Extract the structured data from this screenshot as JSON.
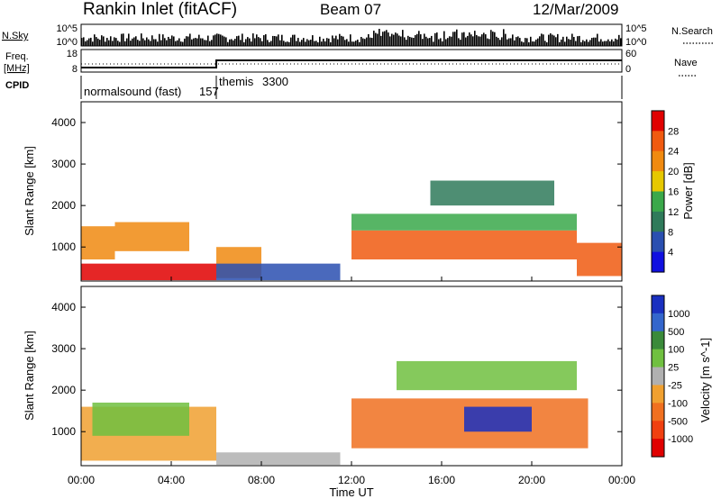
{
  "header": {
    "station": "Rankin Inlet (fitACF)",
    "beam": "Beam 07",
    "date": "12/Mar/2009"
  },
  "strips": {
    "nsky": {
      "label": "N.Sky",
      "ticks": [
        "10^5",
        "10^0"
      ]
    },
    "nsearch": {
      "label": "N.Search",
      "ticks": [
        "10^5",
        "10^0"
      ]
    },
    "freq": {
      "label_line1": "Freq.",
      "label_line2": "[MHz]",
      "ticks": [
        "18",
        "8"
      ]
    },
    "nave": {
      "label": "Nave",
      "ticks": [
        "60",
        "0"
      ]
    },
    "cpid": {
      "label": "CPID",
      "modes": [
        {
          "name": "normalsound (fast)",
          "id": "157",
          "start_hour": 0,
          "end_hour": 6
        },
        {
          "name": "themis",
          "id": "3300",
          "start_hour": 6,
          "end_hour": 24
        }
      ]
    }
  },
  "colors": {
    "power_scale": [
      "#1010e0",
      "#2a4fb0",
      "#2f7a5a",
      "#3aa84a",
      "#e6c800",
      "#f08a10",
      "#f05a10",
      "#e00000"
    ],
    "velocity_scale": [
      "#1a30c0",
      "#3366cc",
      "#3a8a3a",
      "#70c040",
      "#b0b0b0",
      "#f0a030",
      "#f07020",
      "#f04010",
      "#e00000"
    ]
  },
  "chart_data": [
    {
      "type": "heatmap",
      "title": "",
      "xlabel": "",
      "ylabel": "Slant Range [km]",
      "x_range_hours": [
        0,
        24
      ],
      "ylim": [
        180,
        4500
      ],
      "x_ticks": [
        "00:00",
        "04:00",
        "08:00",
        "12:00",
        "16:00",
        "20:00",
        "00:00"
      ],
      "y_ticks": [
        "1000",
        "2000",
        "3000",
        "4000"
      ],
      "colorbar": {
        "label": "Power [dB]",
        "ticks": [
          "28",
          "24",
          "20",
          "16",
          "12",
          "8",
          "4"
        ],
        "range": [
          0,
          30
        ]
      },
      "regions": [
        {
          "t0": 0.0,
          "t1": 6.0,
          "r0": 200,
          "r1": 600,
          "value": 28
        },
        {
          "t0": 0.0,
          "t1": 1.5,
          "r0": 700,
          "r1": 1500,
          "value": 22
        },
        {
          "t0": 1.5,
          "t1": 4.8,
          "r0": 900,
          "r1": 1600,
          "value": 20
        },
        {
          "t0": 6.0,
          "t1": 8.0,
          "r0": 250,
          "r1": 1000,
          "value": 20
        },
        {
          "t0": 6.0,
          "t1": 11.5,
          "r0": 200,
          "r1": 600,
          "value": 6
        },
        {
          "t0": 12.0,
          "t1": 22.0,
          "r0": 700,
          "r1": 1400,
          "value": 26
        },
        {
          "t0": 12.0,
          "t1": 22.0,
          "r0": 1400,
          "r1": 1800,
          "value": 12
        },
        {
          "t0": 15.5,
          "t1": 21.0,
          "r0": 2000,
          "r1": 2600,
          "value": 8
        },
        {
          "t0": 22.0,
          "t1": 24.0,
          "r0": 300,
          "r1": 1100,
          "value": 24
        }
      ]
    },
    {
      "type": "heatmap",
      "title": "",
      "xlabel": "Time UT",
      "ylabel": "Slant Range [km]",
      "x_range_hours": [
        0,
        24
      ],
      "ylim": [
        180,
        4500
      ],
      "x_ticks": [
        "00:00",
        "04:00",
        "08:00",
        "12:00",
        "16:00",
        "20:00",
        "00:00"
      ],
      "y_ticks": [
        "1000",
        "2000",
        "3000",
        "4000"
      ],
      "colorbar": {
        "label": "Velocity [m s^-1]",
        "ticks": [
          "1000",
          "500",
          "100",
          "25",
          "-25",
          "-100",
          "-500",
          "-1000"
        ],
        "range": [
          -1000,
          1000
        ]
      },
      "regions": [
        {
          "t0": 0.0,
          "t1": 6.0,
          "r0": 300,
          "r1": 1600,
          "value": -300
        },
        {
          "t0": 0.5,
          "t1": 4.8,
          "r0": 900,
          "r1": 1700,
          "value": 150
        },
        {
          "t0": 6.0,
          "t1": 11.5,
          "r0": 200,
          "r1": 500,
          "value": 0
        },
        {
          "t0": 12.0,
          "t1": 22.5,
          "r0": 600,
          "r1": 1800,
          "value": -400
        },
        {
          "t0": 17.0,
          "t1": 20.0,
          "r0": 1000,
          "r1": 1600,
          "value": 900
        },
        {
          "t0": 14.0,
          "t1": 22.0,
          "r0": 2000,
          "r1": 2700,
          "value": 200
        }
      ]
    }
  ]
}
